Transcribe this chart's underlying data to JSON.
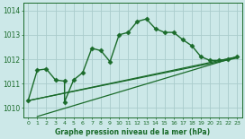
{
  "xlabel": "Graphe pression niveau de la mer (hPa)",
  "background_color": "#cce8e8",
  "grid_color": "#aacccc",
  "line_color": "#1a6b2a",
  "xlim": [
    -0.5,
    23.5
  ],
  "ylim": [
    1009.6,
    1014.3
  ],
  "yticks": [
    1010,
    1011,
    1012,
    1013,
    1014
  ],
  "xticks": [
    0,
    1,
    2,
    3,
    4,
    5,
    6,
    7,
    8,
    9,
    10,
    11,
    12,
    13,
    14,
    15,
    16,
    17,
    18,
    19,
    20,
    21,
    22,
    23
  ],
  "series": [
    {
      "x": [
        0,
        1,
        2,
        3,
        4,
        4,
        5,
        6,
        7,
        8,
        9,
        10,
        11,
        12,
        13,
        14,
        15,
        16,
        17,
        18,
        19,
        20,
        21,
        22,
        23
      ],
      "y": [
        1010.3,
        1011.55,
        1011.6,
        1011.15,
        1011.1,
        1010.25,
        1011.15,
        1011.45,
        1012.45,
        1012.35,
        1011.9,
        1013.0,
        1013.1,
        1013.55,
        1013.65,
        1013.25,
        1013.1,
        1013.1,
        1012.8,
        1012.55,
        1012.1,
        1011.95,
        1011.95,
        1012.0,
        1012.1
      ],
      "marker": "D",
      "markersize": 2.5,
      "linewidth": 1.0
    },
    {
      "x": [
        0,
        23
      ],
      "y": [
        1010.3,
        1012.05
      ],
      "marker": null,
      "markersize": 0,
      "linewidth": 0.9
    },
    {
      "x": [
        0,
        23
      ],
      "y": [
        1010.3,
        1012.1
      ],
      "marker": null,
      "markersize": 0,
      "linewidth": 0.9
    },
    {
      "x": [
        1,
        23
      ],
      "y": [
        1009.65,
        1012.1
      ],
      "marker": null,
      "markersize": 0,
      "linewidth": 0.9
    }
  ]
}
